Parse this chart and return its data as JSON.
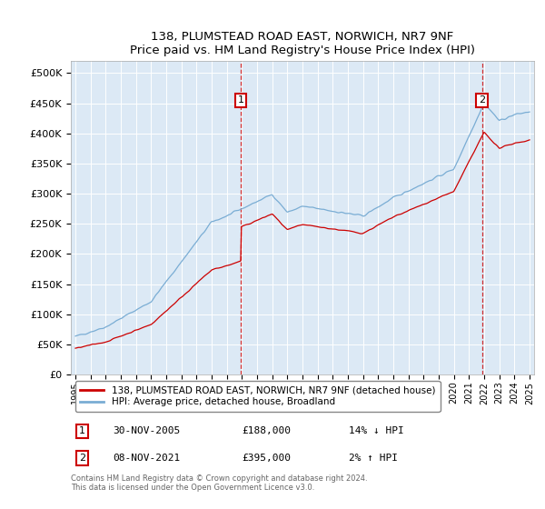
{
  "title": "138, PLUMSTEAD ROAD EAST, NORWICH, NR7 9NF",
  "subtitle": "Price paid vs. HM Land Registry's House Price Index (HPI)",
  "ylim": [
    0,
    520000
  ],
  "ytick_vals": [
    0,
    50000,
    100000,
    150000,
    200000,
    250000,
    300000,
    350000,
    400000,
    450000,
    500000
  ],
  "ytick_labels": [
    "£0",
    "£50K",
    "£100K",
    "£150K",
    "£200K",
    "£250K",
    "£300K",
    "£350K",
    "£400K",
    "£450K",
    "£500K"
  ],
  "plot_bg_color": "#dce9f5",
  "grid_color": "#ffffff",
  "hpi_color": "#7aadd4",
  "price_color": "#cc0000",
  "marker1_x": 2005.92,
  "marker2_x": 2021.86,
  "marker1_label": "1",
  "marker2_label": "2",
  "legend_line1": "138, PLUMSTEAD ROAD EAST, NORWICH, NR7 9NF (detached house)",
  "legend_line2": "HPI: Average price, detached house, Broadland",
  "note1_box": "1",
  "note1_date": "30-NOV-2005",
  "note1_price": "£188,000",
  "note1_hpi": "14% ↓ HPI",
  "note2_box": "2",
  "note2_date": "08-NOV-2021",
  "note2_price": "£395,000",
  "note2_hpi": "2% ↑ HPI",
  "footer": "Contains HM Land Registry data © Crown copyright and database right 2024.\nThis data is licensed under the Open Government Licence v3.0.",
  "xmin": 1995,
  "xmax": 2025
}
